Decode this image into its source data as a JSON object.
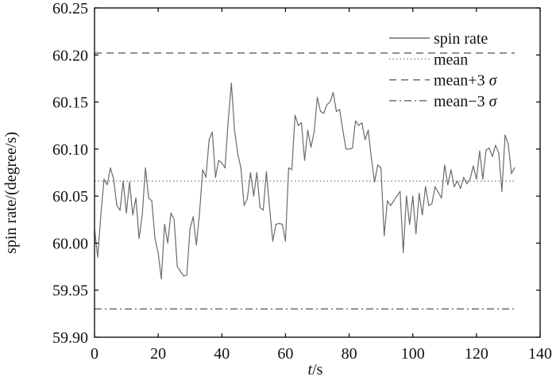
{
  "chart_data": {
    "type": "line",
    "xlabel": {
      "italic": "t",
      "rest": "/s"
    },
    "ylabel": "spin rate/(degree/s)",
    "xlim": [
      0,
      140
    ],
    "ylim": [
      59.9,
      60.25
    ],
    "x_ticks": [
      "0",
      "20",
      "40",
      "60",
      "80",
      "100",
      "120",
      "140"
    ],
    "y_ticks": [
      "59.90",
      "59.95",
      "60.00",
      "60.05",
      "60.10",
      "60.15",
      "60.20",
      "60.25"
    ],
    "grid": false,
    "legend_position": "top-right",
    "legend": [
      {
        "label": "spin rate",
        "style": "solid"
      },
      {
        "label": "mean",
        "style": "dotted"
      },
      {
        "label": "mean+3 σ",
        "style": "dashed"
      },
      {
        "label": "mean−3 σ",
        "style": "dashdot"
      }
    ],
    "colors": {
      "series": "#6b6b6b",
      "axis": "#000000"
    },
    "series": [
      {
        "name": "spin rate",
        "x": [
          0,
          1,
          2,
          3,
          4,
          5,
          6,
          7,
          8,
          9,
          10,
          11,
          12,
          13,
          14,
          15,
          16,
          17,
          18,
          19,
          20,
          21,
          22,
          23,
          24,
          25,
          26,
          27,
          28,
          29,
          30,
          31,
          32,
          33,
          34,
          35,
          36,
          37,
          38,
          39,
          40,
          41,
          42,
          43,
          44,
          45,
          46,
          47,
          48,
          49,
          50,
          51,
          52,
          53,
          54,
          55,
          56,
          57,
          58,
          59,
          60,
          61,
          62,
          63,
          64,
          65,
          66,
          67,
          68,
          69,
          70,
          71,
          72,
          73,
          74,
          75,
          76,
          77,
          78,
          79,
          80,
          81,
          82,
          83,
          84,
          85,
          86,
          87,
          88,
          89,
          90,
          91,
          92,
          93,
          94,
          95,
          96,
          97,
          98,
          99,
          100,
          101,
          102,
          103,
          104,
          105,
          106,
          107,
          108,
          109,
          110,
          111,
          112,
          113,
          114,
          115,
          116,
          117,
          118,
          119,
          120,
          121,
          122,
          123,
          124,
          125,
          126,
          127,
          128,
          129,
          130,
          131,
          132
        ],
        "values": [
          60.015,
          59.985,
          60.03,
          60.068,
          60.062,
          60.08,
          60.068,
          60.04,
          60.035,
          60.066,
          60.032,
          60.065,
          60.03,
          60.048,
          60.005,
          60.03,
          60.08,
          60.048,
          60.045,
          60.005,
          59.99,
          59.962,
          60.02,
          60.0,
          60.032,
          60.025,
          59.975,
          59.97,
          59.965,
          59.966,
          60.015,
          60.028,
          59.998,
          60.032,
          60.078,
          60.07,
          60.11,
          60.118,
          60.07,
          60.088,
          60.085,
          60.08,
          60.13,
          60.17,
          60.12,
          60.095,
          60.08,
          60.04,
          60.047,
          60.075,
          60.05,
          60.075,
          60.038,
          60.035,
          60.076,
          60.038,
          60.002,
          60.02,
          60.021,
          60.02,
          60.002,
          60.08,
          60.078,
          60.136,
          60.125,
          60.128,
          60.088,
          60.12,
          60.102,
          60.118,
          60.155,
          60.14,
          60.138,
          60.147,
          60.15,
          60.16,
          60.14,
          60.142,
          60.12,
          60.1,
          60.1,
          60.101,
          60.13,
          60.125,
          60.128,
          60.11,
          60.12,
          60.09,
          60.065,
          60.083,
          60.08,
          60.008,
          60.045,
          60.04,
          60.045,
          60.05,
          60.055,
          59.99,
          60.05,
          60.02,
          60.05,
          60.01,
          60.053,
          60.03,
          60.06,
          60.04,
          60.042,
          60.06,
          60.054,
          60.048,
          60.083,
          60.062,
          60.078,
          60.06,
          60.066,
          60.058,
          60.07,
          60.063,
          60.068,
          60.082,
          60.068,
          60.098,
          60.068,
          60.099,
          60.101,
          60.092,
          60.104,
          60.096,
          60.055,
          60.115,
          60.105,
          60.074,
          60.08
        ]
      }
    ],
    "reference_lines": [
      {
        "name": "mean",
        "y": 60.066,
        "style": "dotted"
      },
      {
        "name": "mean+3 σ",
        "y": 60.202,
        "style": "dashed"
      },
      {
        "name": "mean−3 σ",
        "y": 59.93,
        "style": "dashdot"
      }
    ]
  }
}
